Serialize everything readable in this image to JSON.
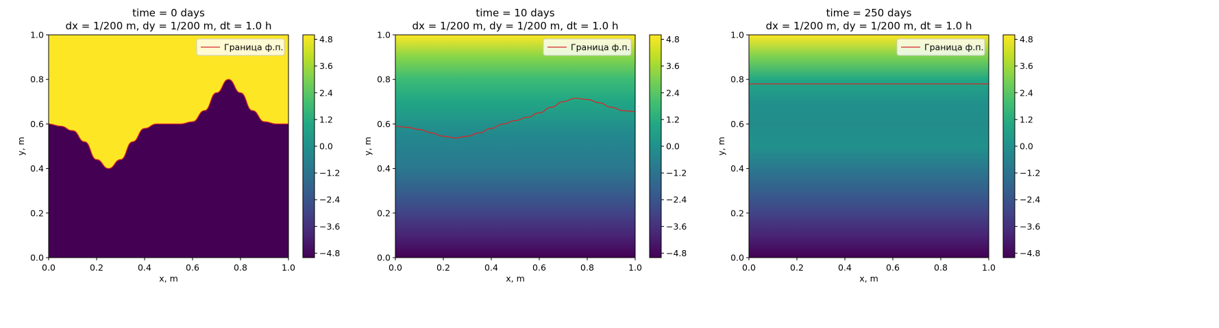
{
  "chart_data": [
    {
      "type": "heatmap",
      "title": "time = 0 days",
      "subtitle": "dx = 1/200 m, dy = 1/200 m, dt = 1.0 h",
      "xlabel": "x, m",
      "ylabel": "y, m",
      "xlim": [
        0,
        1
      ],
      "ylim": [
        0,
        1
      ],
      "x_ticks": [
        "0.0",
        "0.2",
        "0.4",
        "0.6",
        "0.8",
        "1.0"
      ],
      "y_ticks": [
        "0.0",
        "0.2",
        "0.4",
        "0.6",
        "0.8",
        "1.0"
      ],
      "legend": {
        "entries": [
          "Граница ф.п."
        ],
        "placement": "top-right"
      },
      "field": "sharp",
      "front": {
        "x": [
          0.0,
          0.05,
          0.1,
          0.15,
          0.2,
          0.25,
          0.3,
          0.35,
          0.4,
          0.45,
          0.5,
          0.55,
          0.6,
          0.65,
          0.7,
          0.75,
          0.8,
          0.85,
          0.9,
          0.95,
          1.0
        ],
        "y": [
          0.6,
          0.59,
          0.57,
          0.52,
          0.44,
          0.4,
          0.44,
          0.52,
          0.58,
          0.6,
          0.6,
          0.6,
          0.61,
          0.66,
          0.74,
          0.8,
          0.74,
          0.66,
          0.61,
          0.6,
          0.6
        ]
      },
      "colorbar": {
        "min": -5,
        "max": 5,
        "ticks": [
          "4.8",
          "3.6",
          "2.4",
          "1.2",
          "0.0",
          "−1.2",
          "−2.4",
          "−3.6",
          "−4.8"
        ],
        "tick_values": [
          4.8,
          3.6,
          2.4,
          1.2,
          0.0,
          -1.2,
          -2.4,
          -3.6,
          -4.8
        ]
      }
    },
    {
      "type": "heatmap",
      "title": "time = 10 days",
      "subtitle": "dx = 1/200 m, dy = 1/200 m, dt = 1.0 h",
      "xlabel": "x, m",
      "ylabel": "y, m",
      "xlim": [
        0,
        1
      ],
      "ylim": [
        0,
        1
      ],
      "x_ticks": [
        "0.0",
        "0.2",
        "0.4",
        "0.6",
        "0.8",
        "1.0"
      ],
      "y_ticks": [
        "0.0",
        "0.2",
        "0.4",
        "0.6",
        "0.8",
        "1.0"
      ],
      "legend": {
        "entries": [
          "Граница ф.п."
        ],
        "placement": "top-right"
      },
      "field": "smooth",
      "front": {
        "x": [
          0.0,
          0.05,
          0.1,
          0.15,
          0.2,
          0.25,
          0.3,
          0.35,
          0.4,
          0.45,
          0.5,
          0.55,
          0.6,
          0.65,
          0.7,
          0.75,
          0.8,
          0.85,
          0.9,
          0.95,
          1.0
        ],
        "y": [
          0.59,
          0.585,
          0.575,
          0.56,
          0.545,
          0.537,
          0.545,
          0.56,
          0.58,
          0.6,
          0.615,
          0.63,
          0.65,
          0.675,
          0.7,
          0.715,
          0.71,
          0.695,
          0.675,
          0.66,
          0.655
        ]
      },
      "colorbar": {
        "min": -5,
        "max": 5,
        "ticks": [
          "4.8",
          "3.6",
          "2.4",
          "1.2",
          "0.0",
          "−1.2",
          "−2.4",
          "−3.6",
          "−4.8"
        ],
        "tick_values": [
          4.8,
          3.6,
          2.4,
          1.2,
          0.0,
          -1.2,
          -2.4,
          -3.6,
          -4.8
        ]
      }
    },
    {
      "type": "heatmap",
      "title": "time = 250 days",
      "subtitle": "dx = 1/200 m, dy = 1/200 m, dt = 1.0 h",
      "xlabel": "x, m",
      "ylabel": "y, m",
      "xlim": [
        0,
        1
      ],
      "ylim": [
        0,
        1
      ],
      "x_ticks": [
        "0.0",
        "0.2",
        "0.4",
        "0.6",
        "0.8",
        "1.0"
      ],
      "y_ticks": [
        "0.0",
        "0.2",
        "0.4",
        "0.6",
        "0.8",
        "1.0"
      ],
      "legend": {
        "entries": [
          "Граница ф.п."
        ],
        "placement": "top-right"
      },
      "field": "linear",
      "front": {
        "x": [
          0.0,
          1.0
        ],
        "y": [
          0.78,
          0.78
        ]
      },
      "colorbar": {
        "min": -5,
        "max": 5,
        "ticks": [
          "4.8",
          "3.6",
          "2.4",
          "1.2",
          "0.0",
          "−1.2",
          "−2.4",
          "−3.6",
          "−4.8"
        ],
        "tick_values": [
          4.8,
          3.6,
          2.4,
          1.2,
          0.0,
          -1.2,
          -2.4,
          -3.6,
          -4.8
        ]
      }
    }
  ],
  "colors": {
    "front_line": "#d62728",
    "background": "#ffffff",
    "axes": "#000000"
  }
}
